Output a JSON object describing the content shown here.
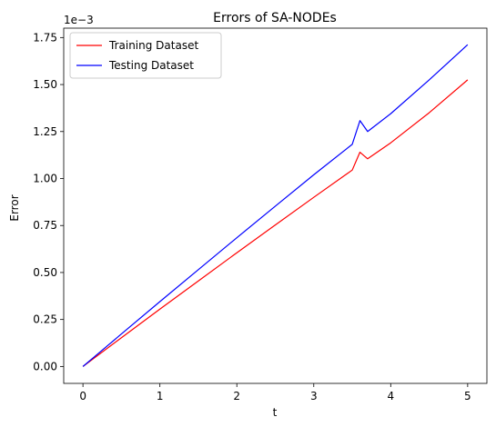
{
  "chart_data": {
    "type": "line",
    "title": "Errors of SA-NODEs",
    "xlabel": "t",
    "ylabel": "Error",
    "y_offset_label": "1e−3",
    "xlim": [
      -0.25,
      5.25
    ],
    "ylim": [
      -9e-05,
      0.0018
    ],
    "xticks": [
      0,
      1,
      2,
      3,
      4,
      5
    ],
    "xtick_labels": [
      "0",
      "1",
      "2",
      "3",
      "4",
      "5"
    ],
    "yticks": [
      0,
      0.00025,
      0.0005,
      0.00075,
      0.001,
      0.00125,
      0.0015,
      0.00175
    ],
    "ytick_labels": [
      "0.00",
      "0.25",
      "0.50",
      "0.75",
      "1.00",
      "1.25",
      "1.50",
      "1.75"
    ],
    "grid": false,
    "legend": "top-left",
    "series": [
      {
        "name": "Training Dataset",
        "color": "#ff0000",
        "x": [
          0,
          0.5,
          1,
          1.5,
          2,
          2.5,
          3,
          3.5,
          3.6,
          3.7,
          4,
          4.5,
          5
        ],
        "y": [
          0,
          0.000153,
          0.000305,
          0.000455,
          0.000605,
          0.000753,
          0.0009,
          0.001045,
          0.00114,
          0.001105,
          0.00119,
          0.00135,
          0.001525
        ]
      },
      {
        "name": "Testing Dataset",
        "color": "#0000ff",
        "x": [
          0,
          0.5,
          1,
          1.5,
          2,
          2.5,
          3,
          3.5,
          3.6,
          3.7,
          4,
          4.5,
          5
        ],
        "y": [
          0,
          0.000173,
          0.000345,
          0.000515,
          0.000685,
          0.000853,
          0.00102,
          0.001182,
          0.001308,
          0.00125,
          0.001345,
          0.001525,
          0.001712
        ]
      }
    ]
  }
}
